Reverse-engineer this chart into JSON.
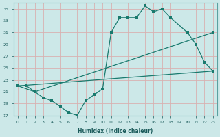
{
  "xlabel": "Humidex (Indice chaleur)",
  "bg_color": "#cce8e8",
  "grid_color": "#d9b0b0",
  "line_color": "#1a7a6e",
  "xlim": [
    -0.5,
    23.5
  ],
  "ylim": [
    17,
    36
  ],
  "xticks": [
    0,
    1,
    2,
    3,
    4,
    5,
    6,
    7,
    8,
    9,
    10,
    11,
    12,
    13,
    14,
    15,
    16,
    17,
    18,
    19,
    20,
    21,
    22,
    23
  ],
  "yticks": [
    17,
    19,
    21,
    23,
    25,
    27,
    29,
    31,
    33,
    35
  ],
  "curve1_x": [
    0,
    1,
    2,
    3,
    4,
    5,
    6,
    7,
    8,
    9,
    10,
    11,
    12,
    13,
    14,
    15,
    16,
    17,
    18,
    20,
    21,
    22,
    23
  ],
  "curve1_y": [
    22,
    22,
    21,
    20,
    19.5,
    18.5,
    17.5,
    17,
    19.5,
    20.5,
    21.5,
    31,
    33.5,
    33.5,
    33.5,
    35.5,
    34.5,
    35,
    33.5,
    31,
    29,
    26,
    24.5
  ],
  "curve2_x": [
    0,
    2,
    23
  ],
  "curve2_y": [
    22,
    21,
    31
  ],
  "curve3_x": [
    0,
    23
  ],
  "curve3_y": [
    22,
    24.5
  ]
}
